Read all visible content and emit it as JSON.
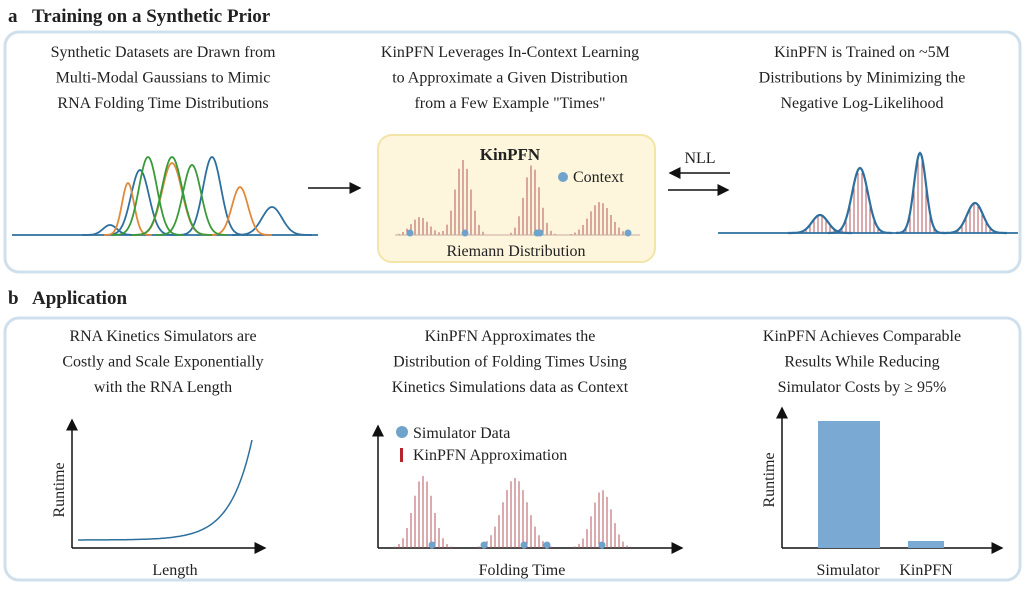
{
  "panel_a": {
    "label": "a",
    "title": "Training on a Synthetic Prior",
    "captions": [
      [
        "Synthetic Datasets are Drawn from",
        "Multi-Modal Gaussians to Mimic",
        "RNA Folding Time Distributions"
      ],
      [
        "KinPFN Leverages In-Context Learning",
        "to Approximate a Given Distribution",
        "from a Few Example \"Times\""
      ],
      [
        "KinPFN is Trained on ~5M",
        "Distributions by Minimizing the",
        "Negative Log-Likelihood"
      ]
    ],
    "model_box": {
      "title": "KinPFN",
      "legend": "Context",
      "output": "Riemann Distribution"
    },
    "loss": "NLL"
  },
  "panel_b": {
    "label": "b",
    "title": "Application",
    "captions": [
      [
        "RNA Kinetics Simulators are",
        "Costly and Scale Exponentially",
        "with the RNA Length"
      ],
      [
        "KinPFN Approximates the",
        "Distribution of Folding Times Using",
        "Kinetics Simulations data as Context"
      ],
      [
        "KinPFN Achieves Comparable",
        "Results While Reducing",
        "Simulator Costs by ≥ 95%"
      ]
    ],
    "runtime_plot": {
      "y_label": "Runtime",
      "x_label": "Length"
    },
    "folding_plot": {
      "legend": [
        "Simulator Data",
        "KinPFN Approximation"
      ],
      "x_label": "Folding Time"
    },
    "cost_plot": {
      "y_label": "Runtime",
      "categories": [
        "Simulator",
        "KinPFN"
      ]
    }
  }
}
